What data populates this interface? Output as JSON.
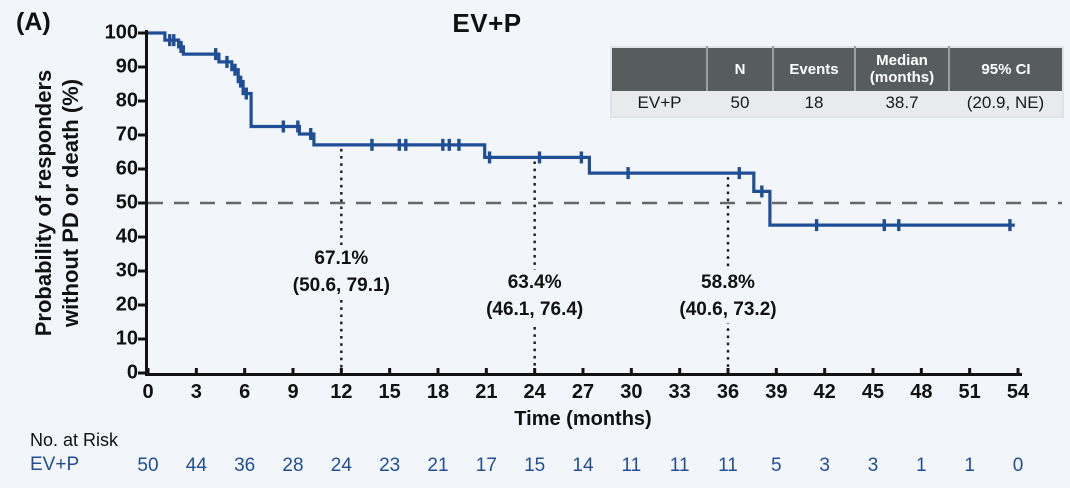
{
  "panel_label": "(A)",
  "title": "EV+P",
  "y_axis": {
    "label_line1": "Probability of responders",
    "label_line2": "without PD or death (%)",
    "ticks": [
      0,
      10,
      20,
      30,
      40,
      50,
      60,
      70,
      80,
      90,
      100
    ]
  },
  "x_axis": {
    "label": "Time (months)",
    "ticks": [
      0,
      3,
      6,
      9,
      12,
      15,
      18,
      21,
      24,
      27,
      30,
      33,
      36,
      39,
      42,
      45,
      48,
      51,
      54
    ]
  },
  "reference_line": {
    "value": 50
  },
  "annotations": [
    {
      "month": 12,
      "rate": "67.1%",
      "ci": "(50.6, 79.1)"
    },
    {
      "month": 24,
      "rate": "63.4%",
      "ci": "(46.1, 76.4)"
    },
    {
      "month": 36,
      "rate": "58.8%",
      "ci": "(40.6, 73.2)"
    }
  ],
  "summary_table": {
    "headers": [
      "",
      "N",
      "Events",
      "Median (months)",
      "95% CI"
    ],
    "row": [
      "EV+P",
      "50",
      "18",
      "38.7",
      "(20.9, NE)"
    ]
  },
  "risk_table": {
    "title": "No. at Risk",
    "series_label": "EV+P",
    "counts": [
      50,
      44,
      36,
      28,
      24,
      23,
      21,
      17,
      15,
      14,
      11,
      11,
      11,
      5,
      3,
      3,
      1,
      1,
      0
    ]
  },
  "colors": {
    "curve": "#1f4e96",
    "risk_text": "#1f4e96",
    "axis": "#111111",
    "dashed_reference": "#666666",
    "dotted_landmark": "#1a1a1a",
    "table_header_bg": "#575d5d",
    "table_row_bg": "#e8eaec"
  },
  "chart_data": {
    "type": "line",
    "subtype": "kaplan-meier-step",
    "title": "EV+P",
    "xlabel": "Time (months)",
    "ylabel": "Probability of responders without PD or death (%)",
    "xlim": [
      0,
      54
    ],
    "ylim": [
      0,
      100
    ],
    "x_tick_step": 3,
    "y_tick_step": 10,
    "grid": false,
    "n": 50,
    "events": 18,
    "median_months": 38.7,
    "median_95ci": "(20.9, NE)",
    "reference_level": 50,
    "landmark_estimates": [
      {
        "month": 12,
        "rate": 67.1,
        "ci_lower": 50.6,
        "ci_upper": 79.1
      },
      {
        "month": 24,
        "rate": 63.4,
        "ci_lower": 46.1,
        "ci_upper": 76.4
      },
      {
        "month": 36,
        "rate": 58.8,
        "ci_lower": 40.6,
        "ci_upper": 73.2
      }
    ],
    "step_points": [
      [
        0,
        100
      ],
      [
        1.05,
        100
      ],
      [
        1.05,
        97.9
      ],
      [
        1.9,
        97.9
      ],
      [
        1.9,
        95.9
      ],
      [
        2.2,
        95.9
      ],
      [
        2.2,
        93.8
      ],
      [
        4.4,
        93.8
      ],
      [
        4.4,
        91.5
      ],
      [
        5.2,
        91.5
      ],
      [
        5.2,
        89.2
      ],
      [
        5.6,
        89.2
      ],
      [
        5.6,
        85.7
      ],
      [
        5.9,
        85.7
      ],
      [
        5.9,
        82.2
      ],
      [
        6.4,
        82.2
      ],
      [
        6.4,
        72.5
      ],
      [
        9.4,
        72.5
      ],
      [
        9.4,
        70.3
      ],
      [
        10.3,
        70.3
      ],
      [
        10.3,
        67.1
      ],
      [
        20.9,
        67.1
      ],
      [
        20.9,
        63.4
      ],
      [
        27.4,
        63.4
      ],
      [
        27.4,
        58.8
      ],
      [
        37.6,
        58.8
      ],
      [
        37.6,
        53.4
      ],
      [
        38.6,
        53.4
      ],
      [
        38.6,
        43.5
      ],
      [
        53.8,
        43.5
      ]
    ],
    "censor_marks": [
      [
        1.35,
        97.9
      ],
      [
        1.6,
        97.9
      ],
      [
        2.05,
        95.9
      ],
      [
        4.2,
        93.8
      ],
      [
        4.9,
        91.5
      ],
      [
        5.4,
        89.2
      ],
      [
        5.75,
        85.7
      ],
      [
        6.1,
        82.2
      ],
      [
        8.4,
        72.5
      ],
      [
        9.3,
        72.5
      ],
      [
        10.1,
        70.3
      ],
      [
        13.9,
        67.1
      ],
      [
        15.6,
        67.1
      ],
      [
        16.0,
        67.1
      ],
      [
        18.3,
        67.1
      ],
      [
        18.7,
        67.1
      ],
      [
        19.3,
        67.1
      ],
      [
        21.2,
        63.4
      ],
      [
        24.3,
        63.4
      ],
      [
        26.9,
        63.4
      ],
      [
        29.8,
        58.8
      ],
      [
        36.7,
        58.8
      ],
      [
        38.1,
        53.4
      ],
      [
        41.5,
        43.5
      ],
      [
        45.7,
        43.5
      ],
      [
        46.6,
        43.5
      ],
      [
        53.5,
        43.5
      ]
    ],
    "at_risk": {
      "months": [
        0,
        3,
        6,
        9,
        12,
        15,
        18,
        21,
        24,
        27,
        30,
        33,
        36,
        39,
        42,
        45,
        48,
        51,
        54
      ],
      "counts": [
        50,
        44,
        36,
        28,
        24,
        23,
        21,
        17,
        15,
        14,
        11,
        11,
        11,
        5,
        3,
        3,
        1,
        1,
        0
      ]
    }
  }
}
